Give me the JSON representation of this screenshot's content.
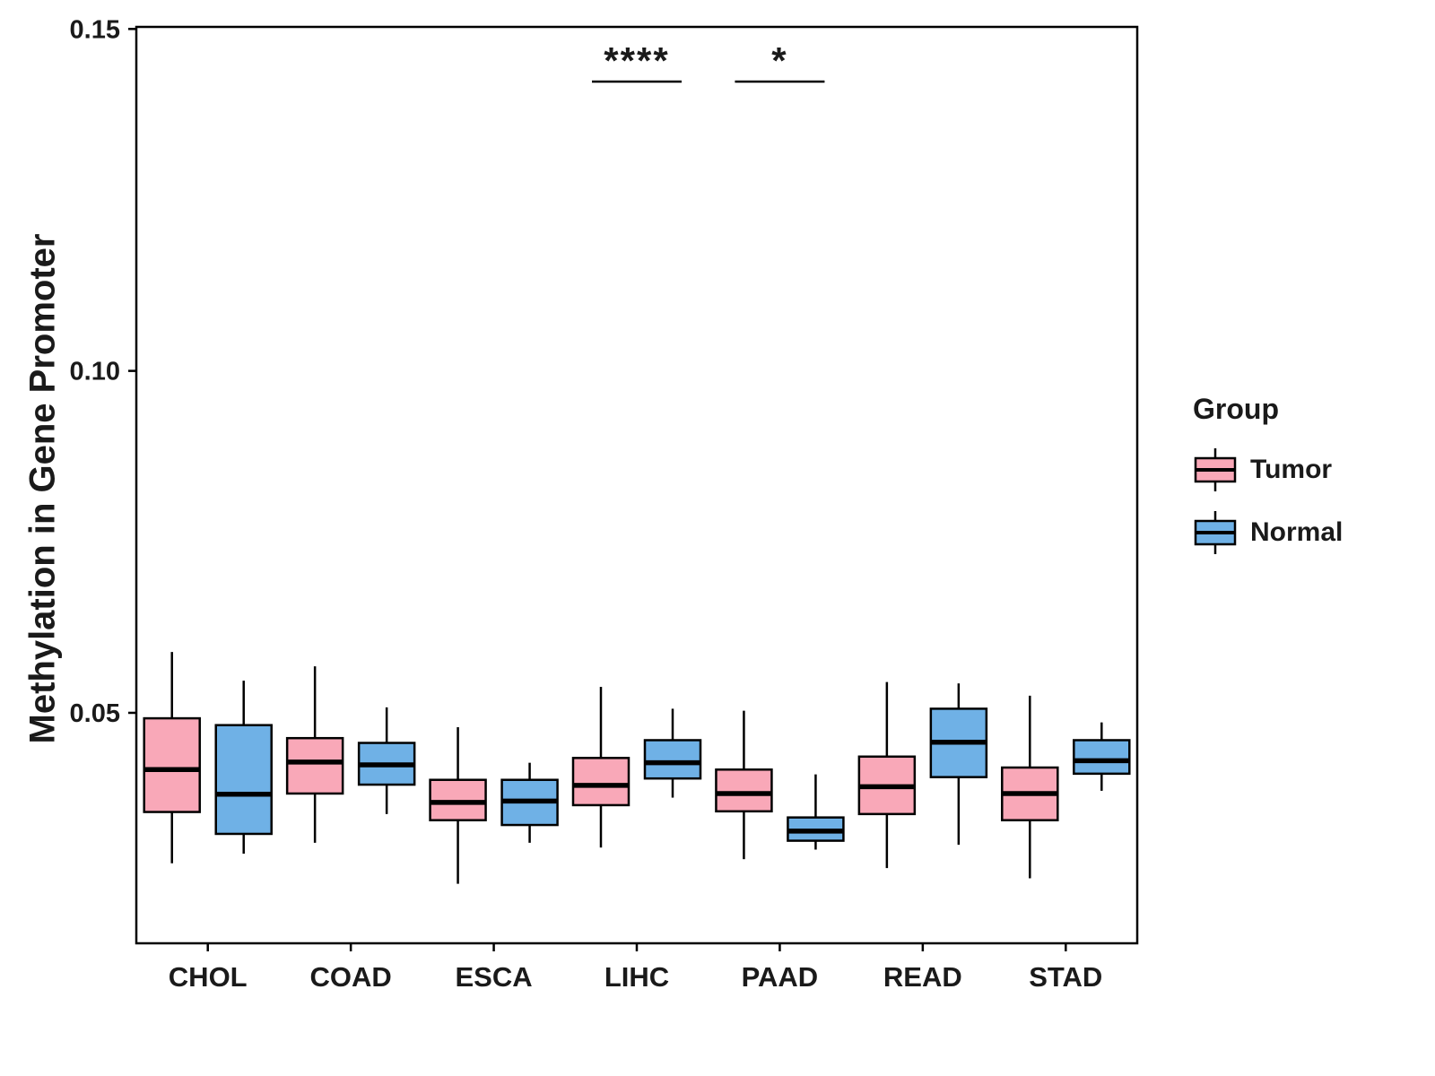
{
  "figure": {
    "legend": {
      "title": "Group",
      "entries": [
        {
          "label": "Tumor",
          "color": "#F9A8B8"
        },
        {
          "label": "Normal",
          "color": "#6FB1E6"
        }
      ]
    }
  },
  "chart_data": {
    "type": "boxplot",
    "title": "",
    "xlabel": "",
    "ylabel": "Methylation in Gene Promoter",
    "categories": [
      "CHOL",
      "COAD",
      "ESCA",
      "LIHC",
      "PAAD",
      "READ",
      "STAD"
    ],
    "ylim": [
      0.0163,
      0.1503
    ],
    "y_ticks": [
      {
        "value": 0.05,
        "label": "0.05"
      },
      {
        "value": 0.1,
        "label": "0.10"
      },
      {
        "value": 0.15,
        "label": "0.15"
      }
    ],
    "grid": false,
    "legend_position": "right",
    "series": [
      {
        "name": "Tumor",
        "color": "#F9A8B8",
        "boxes": [
          {
            "category": "CHOL",
            "low": 0.028,
            "q1": 0.0355,
            "median": 0.0417,
            "q3": 0.0492,
            "high": 0.0589
          },
          {
            "category": "COAD",
            "low": 0.031,
            "q1": 0.0382,
            "median": 0.0428,
            "q3": 0.0463,
            "high": 0.0568
          },
          {
            "category": "ESCA",
            "low": 0.025,
            "q1": 0.0343,
            "median": 0.0369,
            "q3": 0.0402,
            "high": 0.0479
          },
          {
            "category": "LIHC",
            "low": 0.0303,
            "q1": 0.0365,
            "median": 0.0394,
            "q3": 0.0434,
            "high": 0.0538
          },
          {
            "category": "PAAD",
            "low": 0.0286,
            "q1": 0.0356,
            "median": 0.0382,
            "q3": 0.0417,
            "high": 0.0503
          },
          {
            "category": "READ",
            "low": 0.0273,
            "q1": 0.0352,
            "median": 0.0392,
            "q3": 0.0436,
            "high": 0.0545
          },
          {
            "category": "STAD",
            "low": 0.0258,
            "q1": 0.0343,
            "median": 0.0382,
            "q3": 0.042,
            "high": 0.0525
          }
        ]
      },
      {
        "name": "Normal",
        "color": "#6FB1E6",
        "boxes": [
          {
            "category": "CHOL",
            "low": 0.0294,
            "q1": 0.0323,
            "median": 0.0381,
            "q3": 0.0482,
            "high": 0.0547
          },
          {
            "category": "COAD",
            "low": 0.0352,
            "q1": 0.0395,
            "median": 0.0424,
            "q3": 0.0456,
            "high": 0.0508
          },
          {
            "category": "ESCA",
            "low": 0.031,
            "q1": 0.0336,
            "median": 0.0371,
            "q3": 0.0402,
            "high": 0.0427
          },
          {
            "category": "LIHC",
            "low": 0.0376,
            "q1": 0.0404,
            "median": 0.0427,
            "q3": 0.046,
            "high": 0.0506
          },
          {
            "category": "PAAD",
            "low": 0.03,
            "q1": 0.0313,
            "median": 0.0327,
            "q3": 0.0347,
            "high": 0.041
          },
          {
            "category": "READ",
            "low": 0.0307,
            "q1": 0.0406,
            "median": 0.0457,
            "q3": 0.0506,
            "high": 0.0543
          },
          {
            "category": "STAD",
            "low": 0.0386,
            "q1": 0.0411,
            "median": 0.043,
            "q3": 0.046,
            "high": 0.0486
          }
        ]
      }
    ],
    "annotations": [
      {
        "category": "LIHC",
        "label": "****"
      },
      {
        "category": "PAAD",
        "label": "*"
      }
    ]
  }
}
